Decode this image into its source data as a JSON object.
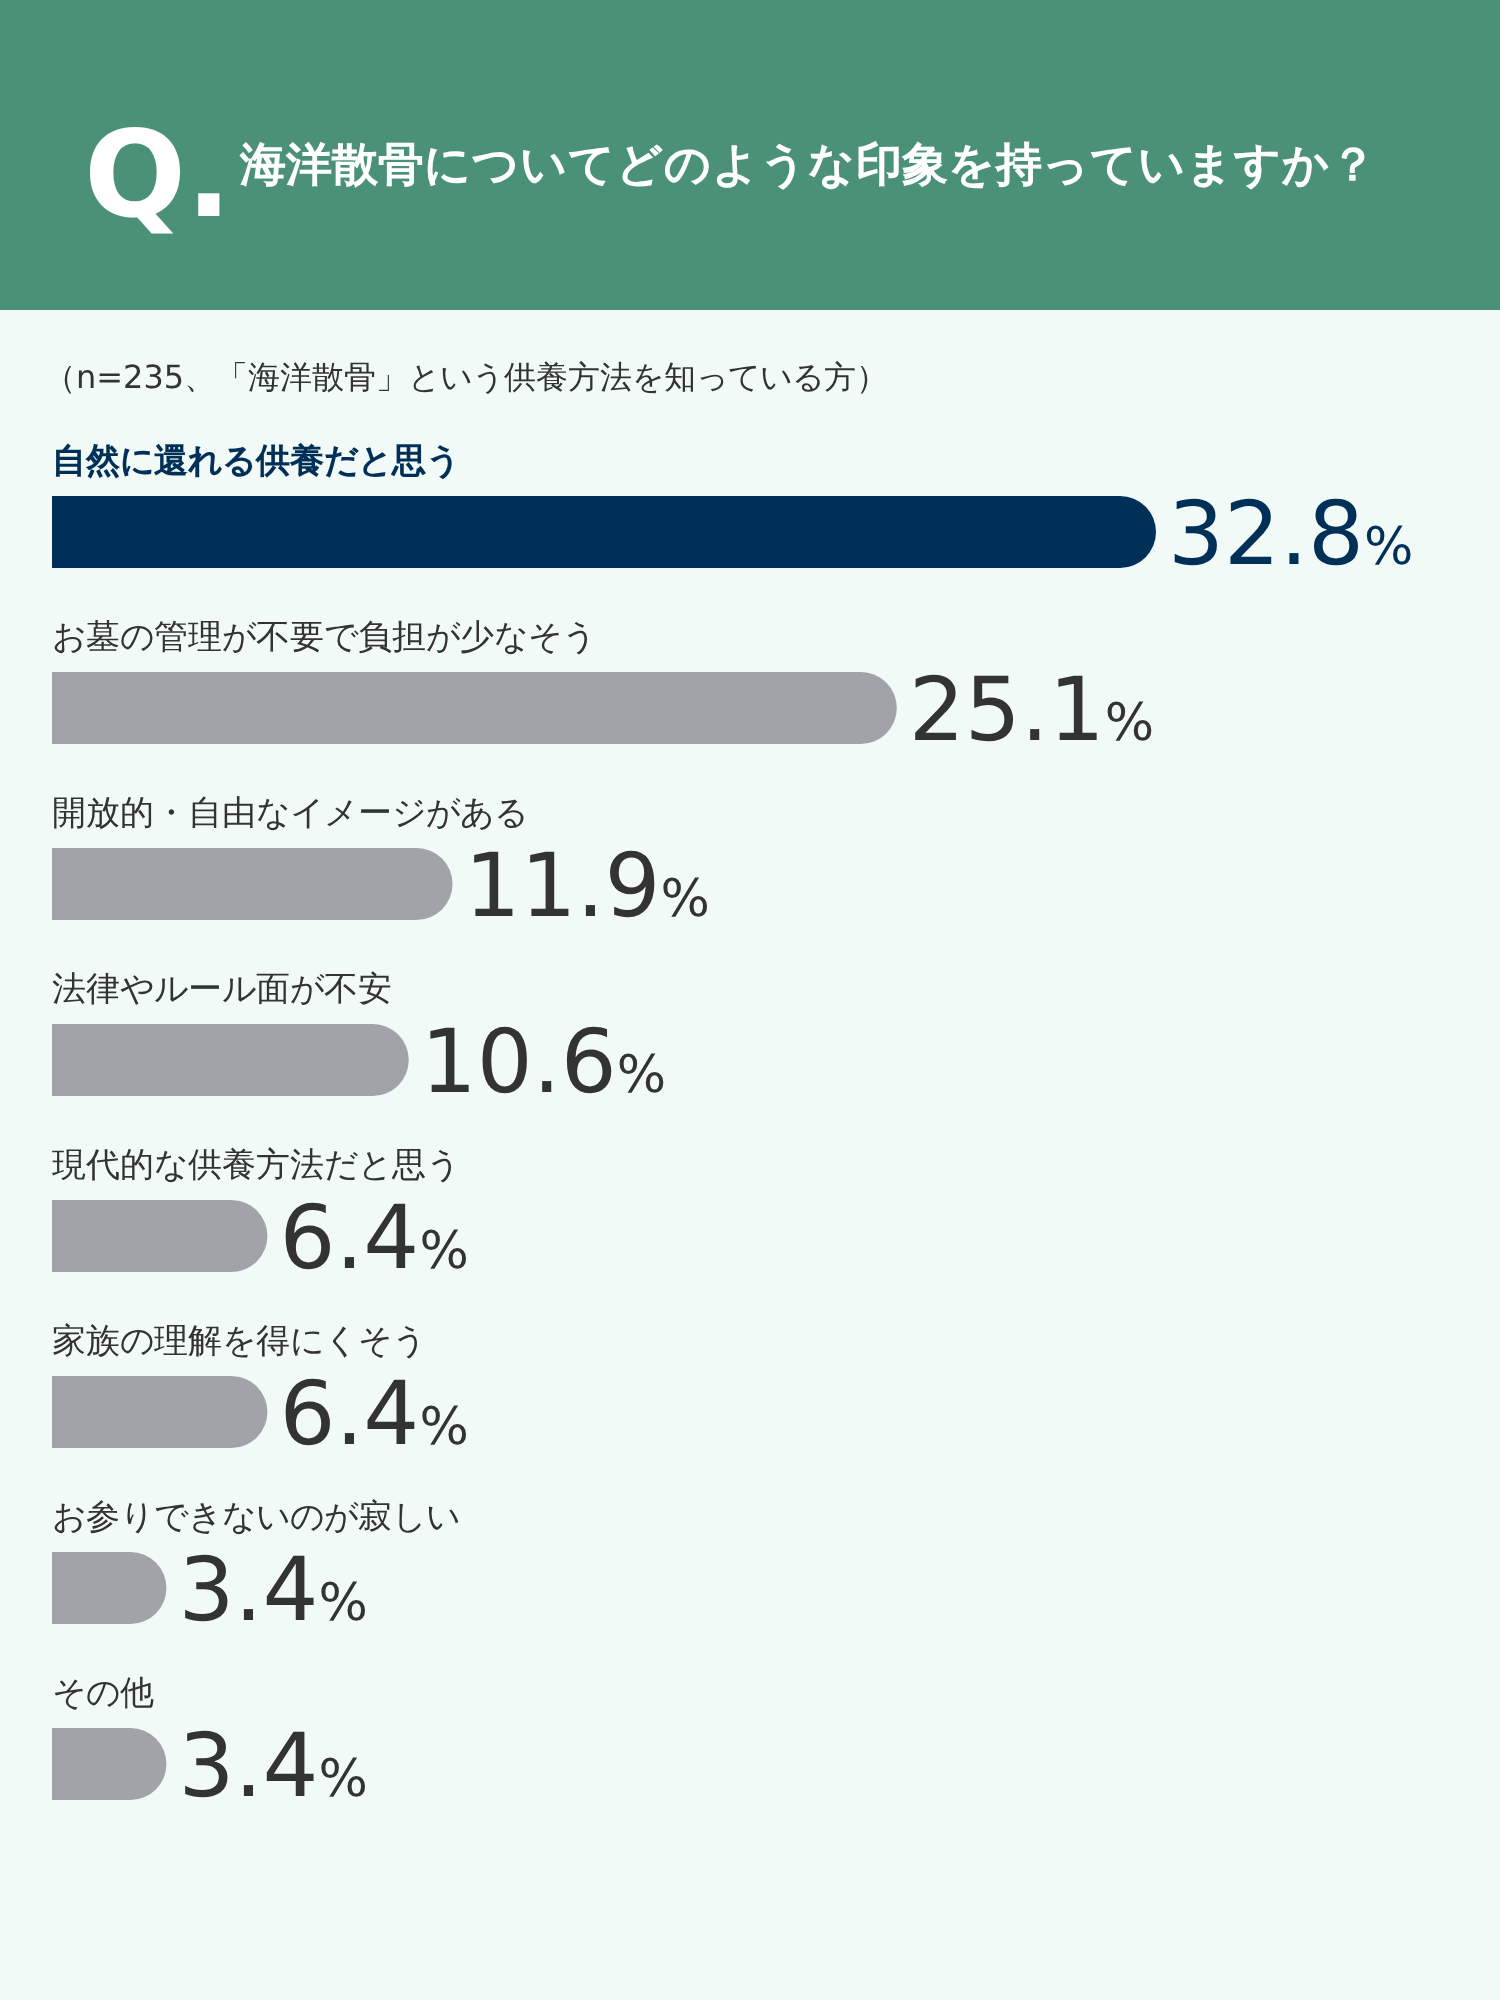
{
  "chart_data": {
    "type": "bar",
    "orientation": "horizontal",
    "title": "海洋散骨についてどのような印象を持っていますか？",
    "subtitle": "（n=235、「海洋散骨」という供養方法を知っている方）",
    "annotations": [
      "Q."
    ],
    "categories": [
      "自然に還れる供養だと思う",
      "お墓の管理が不要で負担が少なそう",
      "開放的・自由なイメージがある",
      "法律やルール面が不安",
      "現代的な供養方法だと思う",
      "家族の理解を得にくそう",
      "お参りできないのが寂しい",
      "その他"
    ],
    "values": [
      32.8,
      25.1,
      11.9,
      10.6,
      6.4,
      6.4,
      3.4,
      3.4
    ],
    "colors": [
      "#003057",
      "#a2a3a8",
      "#a2a3a8",
      "#a2a3a8",
      "#a2a3a8",
      "#a2a3a8",
      "#a2a3a8",
      "#a2a3a8"
    ],
    "value_labels": [
      "32.8%",
      "25.1%",
      "11.9%",
      "10.6%",
      "6.4%",
      "6.4%",
      "3.4%",
      "3.4%"
    ]
  }
}
